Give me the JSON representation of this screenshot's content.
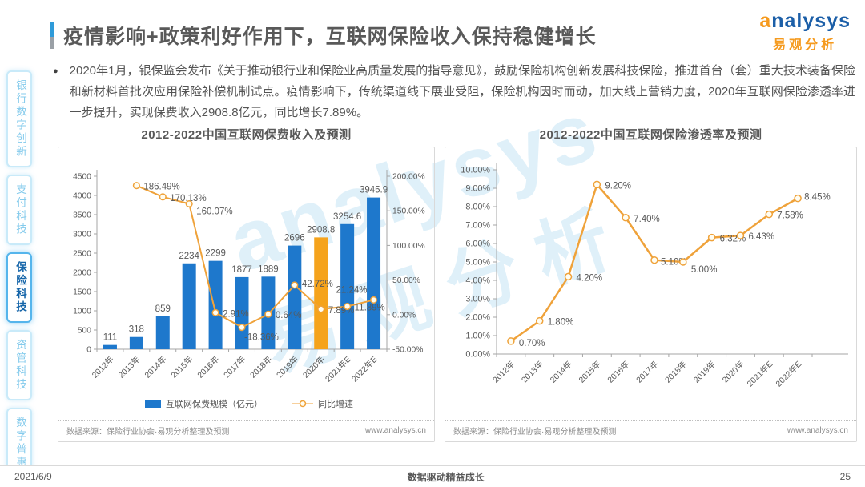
{
  "header": {
    "title": "疫情影响+政策利好作用下，互联网保险收入保持稳健增长",
    "logo": {
      "brand_en": "analysys",
      "brand_cn": "易观分析"
    }
  },
  "sidebar": {
    "items": [
      {
        "label": "银行数字创新",
        "active": false
      },
      {
        "label": "支付科技",
        "active": false
      },
      {
        "label": "保险科技",
        "active": true
      },
      {
        "label": "资管科技",
        "active": false
      },
      {
        "label": "数字普惠",
        "active": false
      }
    ]
  },
  "bullet": {
    "marker": "●",
    "text": "2020年1月，银保监会发布《关于推动银行业和保险业高质量发展的指导意见》，鼓励保险机构创新发展科技保险，推进首台（套）重大技术装备保险和新材料首批次应用保险补偿机制试点。疫情影响下，传统渠道线下展业受阻，保险机构因时而动，加大线上营销力度，2020年互联网保险渗透率进一步提升，实现保费收入2908.8亿元，同比增长7.89%。"
  },
  "chart_data": [
    {
      "type": "bar",
      "title": "2012-2022中国互联网保费收入及预测",
      "categories": [
        "2012年",
        "2013年",
        "2014年",
        "2015年",
        "2016年",
        "2017年",
        "2018年",
        "2019年",
        "2020年",
        "2021年E",
        "2022年E"
      ],
      "series": [
        {
          "name": "互联网保费规模（亿元）",
          "type": "bar",
          "values": [
            111,
            318,
            859,
            2234,
            2299,
            1877,
            1889,
            2696,
            2908.8,
            3254.6,
            3945.9
          ],
          "labels": [
            "111",
            "318",
            "859",
            "2234",
            "2299",
            "1877",
            "1889",
            "2696",
            "2908.8",
            "3254.6",
            "3945.9"
          ],
          "highlight_index": 8
        },
        {
          "name": "同比增速",
          "type": "line",
          "values": [
            null,
            186.49,
            170.13,
            160.07,
            2.91,
            -18.36,
            0.64,
            42.72,
            7.89,
            11.89,
            21.24
          ],
          "labels": [
            "",
            "186.49%",
            "170.13%",
            "160.07%",
            "2.91%",
            "-18.36%",
            "0.64%",
            "42.72%",
            "7.89%",
            "11.89%",
            "21.24%"
          ]
        }
      ],
      "left_axis": {
        "min": 0,
        "max": 4500,
        "step": 500
      },
      "right_axis": {
        "min": -50,
        "max": 200,
        "step": 50
      },
      "legend_position": "bottom",
      "grid": false,
      "source": "数据来源：保险行业协会·易观分析整理及预测",
      "url": "www.analysys.cn",
      "colors": {
        "bar": "#1e78cc",
        "bar_highlight": "#f5a31c",
        "line": "#efa23a"
      }
    },
    {
      "type": "line",
      "title": "2012-2022中国互联网保险渗透率及预测",
      "categories": [
        "2012年",
        "2013年",
        "2014年",
        "2015年",
        "2016年",
        "2017年",
        "2018年",
        "2019年",
        "2020年",
        "2021年E",
        "2022年E"
      ],
      "values": [
        0.7,
        1.8,
        4.2,
        9.2,
        7.4,
        5.1,
        5.0,
        6.32,
        6.43,
        7.58,
        8.45
      ],
      "labels": [
        "0.70%",
        "1.80%",
        "4.20%",
        "9.20%",
        "7.40%",
        "5.10%",
        "5.00%",
        "6.32%",
        "6.43%",
        "7.58%",
        "8.45%"
      ],
      "y_axis": {
        "min": 0,
        "max": 10,
        "step": 1
      },
      "grid": false,
      "source": "数据来源：保险行业协会·易观分析整理及预测",
      "url": "www.analysys.cn",
      "colors": {
        "line": "#efa23a"
      }
    }
  ],
  "watermark": {
    "en": "analysys",
    "cn": "易观分析"
  },
  "footer": {
    "date": "2021/6/9",
    "slogan": "数据驱动精益成长",
    "page": "25"
  }
}
